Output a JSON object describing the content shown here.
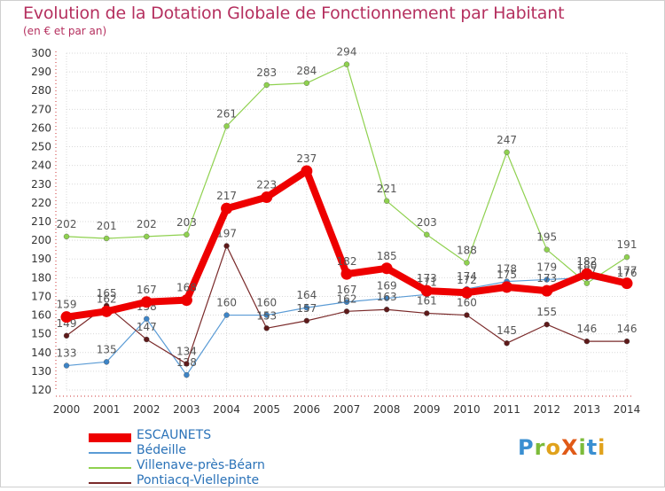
{
  "title": "Evolution de la Dotation Globale de Fonctionnement par Habitant",
  "subtitle": "(en € et par an)",
  "logo": {
    "text": "ProXiti",
    "letters": [
      "P",
      "r",
      "o",
      "X",
      "i",
      "t",
      "i"
    ],
    "colors": [
      "#3a8fd1",
      "#7cbb3a",
      "#e0a21c",
      "#e05a17",
      "#7cbb3a",
      "#3a8fd1",
      "#e0a21c"
    ]
  },
  "chart_data": {
    "type": "line",
    "title": "Evolution de la Dotation Globale de Fonctionnement par Habitant",
    "ylabel": "(en € et par an)",
    "xlabel": "",
    "x": [
      2000,
      2001,
      2002,
      2003,
      2004,
      2005,
      2006,
      2007,
      2008,
      2009,
      2010,
      2011,
      2012,
      2013,
      2014
    ],
    "ylim": [
      120,
      300
    ],
    "yticks": [
      120,
      130,
      140,
      150,
      160,
      170,
      180,
      190,
      200,
      210,
      220,
      230,
      240,
      250,
      260,
      270,
      280,
      290,
      300
    ],
    "grid": true,
    "series": [
      {
        "name": "Villenave-près-Béarn",
        "color": "#8fd14f",
        "marker": "#8fd14f",
        "emphasis": false,
        "values": [
          202,
          201,
          202,
          203,
          261,
          283,
          284,
          294,
          221,
          203,
          188,
          247,
          195,
          177,
          191
        ]
      },
      {
        "name": "Bédeille",
        "color": "#5a9bd5",
        "marker": "#3d84c6",
        "emphasis": false,
        "values": [
          133,
          135,
          158,
          128,
          160,
          160,
          164,
          167,
          169,
          171,
          174,
          178,
          179,
          180,
          176
        ]
      },
      {
        "name": "Pontiacq-Viellepinte",
        "color": "#7a2a2a",
        "marker": "#5e1a1a",
        "emphasis": false,
        "values": [
          149,
          165,
          147,
          134,
          197,
          153,
          157,
          162,
          163,
          161,
          160,
          145,
          155,
          146,
          146
        ]
      },
      {
        "name": "ESCAUNETS",
        "color": "#ee0000",
        "marker": "#ee0000",
        "emphasis": true,
        "values": [
          159,
          162,
          167,
          168,
          217,
          223,
          237,
          182,
          185,
          173,
          172,
          175,
          173,
          182,
          177
        ]
      }
    ],
    "legend_order": [
      "ESCAUNETS",
      "Bédeille",
      "Villenave-près-Béarn",
      "Pontiacq-Viellepinte"
    ],
    "legend_position": "bottom-left"
  }
}
